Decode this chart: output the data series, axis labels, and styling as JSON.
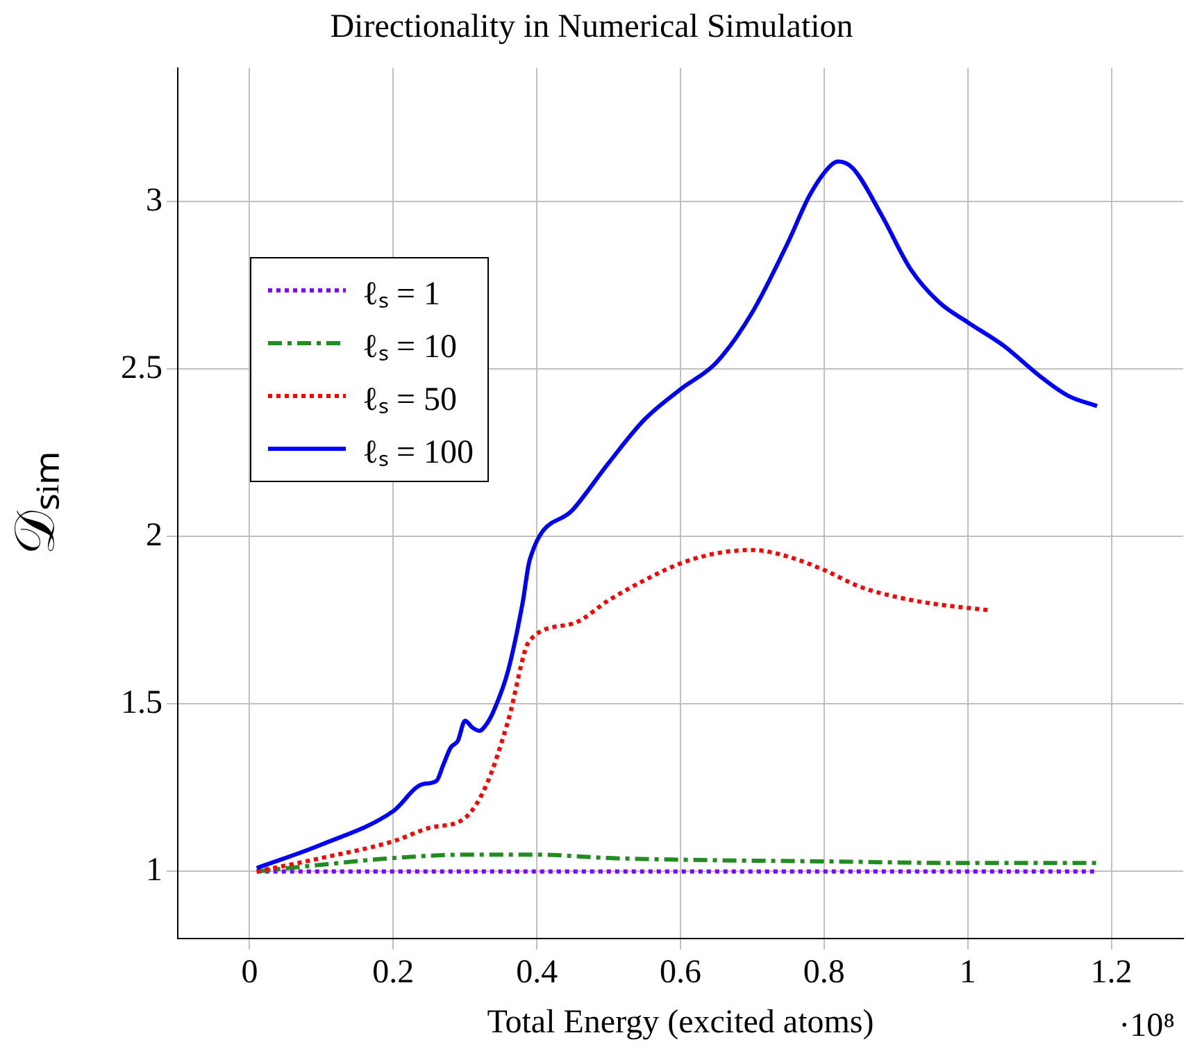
{
  "chart_data": {
    "type": "line",
    "title": "Directionality in Numerical Simulation",
    "xlabel": "Total Energy (excited atoms)",
    "ylabel": "𝒟ₛᵢₘ",
    "annotations": [
      "·10⁸"
    ],
    "xlim": [
      -0.1,
      1.3
    ],
    "xticks": [
      0,
      0.2,
      0.4,
      0.6,
      0.8,
      1,
      1.2
    ],
    "ylim": [
      0.8,
      3.4
    ],
    "yticks": [
      1,
      1.5,
      2,
      2.5,
      3
    ],
    "grid": true,
    "legend": "top left",
    "marker": "none",
    "series": [
      {
        "name": "ℓₛ = 1",
        "color": "#7f00ff",
        "line_style": "dotted",
        "x": [
          0.01,
          0.3,
          0.6,
          0.9,
          1.18
        ],
        "values": [
          1,
          1,
          1,
          1,
          1
        ]
      },
      {
        "name": "ℓₛ = 10",
        "color": "#228b22",
        "line_style": "dashdot",
        "x": [
          0.01,
          0.1,
          0.2,
          0.3,
          0.4,
          0.5,
          0.6,
          0.8,
          1.0,
          1.18
        ],
        "values": [
          1,
          1.02,
          1.04,
          1.05,
          1.05,
          1.04,
          1.035,
          1.03,
          1.025,
          1.025
        ]
      },
      {
        "name": "ℓₛ = 50",
        "color": "#ff0000",
        "line_style": "dotted",
        "x": [
          0.01,
          0.1,
          0.2,
          0.25,
          0.3,
          0.33,
          0.36,
          0.39,
          0.45,
          0.5,
          0.55,
          0.6,
          0.65,
          0.7,
          0.75,
          0.8,
          0.85,
          0.9,
          0.95,
          1.03
        ],
        "values": [
          1,
          1.04,
          1.09,
          1.13,
          1.16,
          1.26,
          1.45,
          1.69,
          1.74,
          1.81,
          1.87,
          1.92,
          1.95,
          1.96,
          1.94,
          1.9,
          1.85,
          1.82,
          1.8,
          1.78
        ]
      },
      {
        "name": "ℓₛ = 100",
        "color": "#0000ff",
        "line_style": "solid",
        "x": [
          0.01,
          0.1,
          0.2,
          0.24,
          0.26,
          0.27,
          0.28,
          0.29,
          0.3,
          0.31,
          0.32,
          0.33,
          0.34,
          0.36,
          0.38,
          0.39,
          0.45,
          0.5,
          0.55,
          0.6,
          0.65,
          0.7,
          0.75,
          0.78,
          0.81,
          0.82,
          0.84,
          0.88,
          0.92,
          0.96,
          1.0,
          1.05,
          1.1,
          1.14,
          1.18
        ],
        "values": [
          1.01,
          1.08,
          1.18,
          1.26,
          1.27,
          1.32,
          1.37,
          1.39,
          1.45,
          1.43,
          1.42,
          1.44,
          1.48,
          1.6,
          1.8,
          1.93,
          2.08,
          2.22,
          2.35,
          2.44,
          2.52,
          2.67,
          2.88,
          3.02,
          3.11,
          3.12,
          3.1,
          2.96,
          2.8,
          2.7,
          2.64,
          2.57,
          2.48,
          2.42,
          2.39
        ]
      }
    ]
  }
}
